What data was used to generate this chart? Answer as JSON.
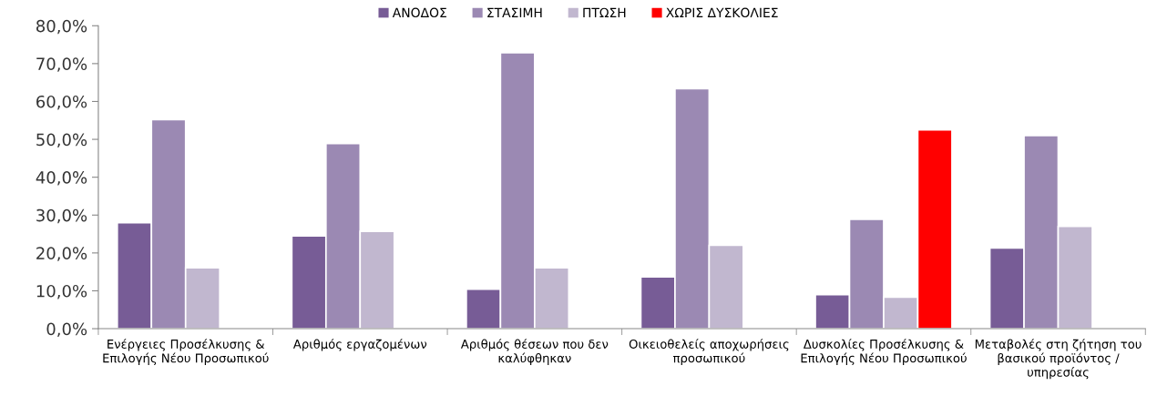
{
  "chart_data": {
    "type": "bar",
    "categories": [
      "Ενέργειες Προσέλκυσης & Επιλογής Νέου Προσωπικού",
      "Αριθμός εργαζομένων",
      "Αριθμός θέσεων που δεν καλύφθηκαν",
      "Οικειοθελείς αποχωρήσεις προσωπικού",
      "Δυσκολίες Προσέλκυσης & Επιλογής Νέου Προσωπικού",
      "Μεταβολές στη ζήτηση του βασικού προϊόντος / υπηρεσίας"
    ],
    "series": [
      {
        "name": "ΑΝΟΔΟΣ",
        "color": "#775c96",
        "values": [
          28.0,
          24.5,
          10.4,
          13.7,
          9.0,
          21.3
        ]
      },
      {
        "name": "ΣΤΑΣΙΜΗ",
        "color": "#9b89b3",
        "values": [
          55.2,
          48.9,
          72.9,
          63.4,
          28.9,
          51.0
        ]
      },
      {
        "name": "ΠΤΩΣΗ",
        "color": "#c1b7cf",
        "values": [
          16.1,
          25.7,
          16.1,
          22.0,
          8.3,
          27.0
        ]
      },
      {
        "name": "ΧΩΡΙΣ ΔΥΣΚΟΛΙΕΣ",
        "color": "#ff0000",
        "values": [
          null,
          null,
          null,
          null,
          52.5,
          null
        ]
      }
    ],
    "ylim": [
      0,
      80
    ],
    "yticks": [
      {
        "value": 0,
        "label": "0,0%"
      },
      {
        "value": 10,
        "label": "10,0%"
      },
      {
        "value": 20,
        "label": "20,0%"
      },
      {
        "value": 30,
        "label": "30,0%"
      },
      {
        "value": 40,
        "label": "40,0%"
      },
      {
        "value": 50,
        "label": "50,0%"
      },
      {
        "value": 60,
        "label": "60,0%"
      },
      {
        "value": 70,
        "label": "70,0%"
      },
      {
        "value": 80,
        "label": "80,0%"
      }
    ],
    "grid": false,
    "legend": "top"
  }
}
